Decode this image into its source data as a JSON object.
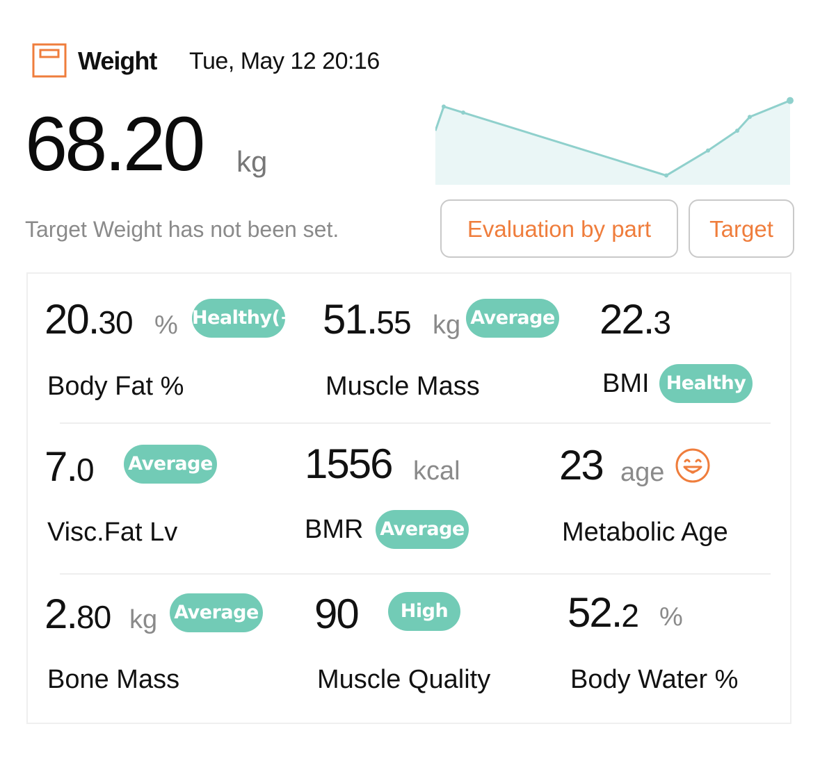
{
  "header": {
    "title": "Weight",
    "datetime": "Tue, May 12 20:16",
    "icon": "scale-icon",
    "accent_color": "#ef7d3c"
  },
  "weight": {
    "value_int": "68.20",
    "unit": "kg",
    "target_note": "Target Weight has not been set."
  },
  "trend": {
    "values": [
      0.58,
      0.86,
      0.79,
      0.06,
      0.35,
      0.58,
      0.74,
      0.93
    ],
    "line_color": "#8fd0cc",
    "fill_color": "#eaf6f6"
  },
  "buttons": {
    "evaluation": "Evaluation by part",
    "target": "Target"
  },
  "metrics": {
    "body_fat": {
      "int": "20.",
      "dec": "30",
      "unit": "%",
      "badge": "Healthy(+)",
      "label": "Body Fat %"
    },
    "muscle_mass": {
      "int": "51.",
      "dec": "55",
      "unit": "kg",
      "badge": "Average",
      "label": "Muscle Mass"
    },
    "bmi": {
      "int": "22.",
      "dec": "3",
      "badge": "Healthy",
      "label": "BMI"
    },
    "visc_fat": {
      "int": "7.",
      "dec": "0",
      "badge": "Average",
      "label": "Visc.Fat Lv"
    },
    "bmr": {
      "int": "1556",
      "unit": "kcal",
      "badge": "Average",
      "label": "BMR"
    },
    "metabolic_age": {
      "int": "23",
      "unit": "age",
      "icon": "smiley-face-icon",
      "label": "Metabolic Age"
    },
    "bone_mass": {
      "int": "2.",
      "dec": "80",
      "unit": "kg",
      "badge": "Average",
      "label": "Bone Mass"
    },
    "muscle_quality": {
      "int": "90",
      "badge": "High",
      "label": "Muscle Quality"
    },
    "body_water": {
      "int": "52.",
      "dec": "2",
      "unit": "%",
      "label": "Body Water %"
    }
  },
  "badge_color": "#72cbb6"
}
